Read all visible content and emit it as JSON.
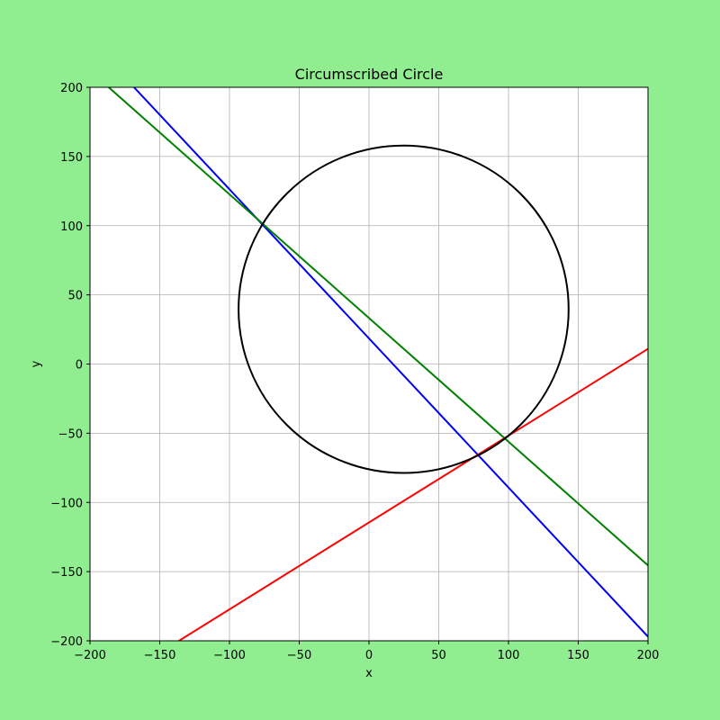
{
  "colors": {
    "figure_background": "#90ee90",
    "plot_background": "#ffffff",
    "grid": "#b0b0b0",
    "axis": "#000000"
  },
  "chart_data": {
    "type": "line",
    "title": "Circumscribed Circle",
    "xlabel": "x",
    "ylabel": "y",
    "xlim": [
      -200,
      200
    ],
    "ylim": [
      -200,
      200
    ],
    "grid": true,
    "x_ticks": [
      -200,
      -150,
      -100,
      -50,
      0,
      50,
      100,
      150,
      200
    ],
    "y_ticks": [
      -200,
      -150,
      -100,
      -50,
      0,
      50,
      100,
      150,
      200
    ],
    "x_tick_labels": [
      "−200",
      "−150",
      "−100",
      "−50",
      "0",
      "50",
      "100",
      "150",
      "200"
    ],
    "y_tick_labels": [
      "−200",
      "−150",
      "−100",
      "−50",
      "0",
      "50",
      "100",
      "150",
      "200"
    ],
    "circle": {
      "center": [
        24.8,
        39.6
      ],
      "radius": 118.3,
      "color": "#000000"
    },
    "series": [
      {
        "color": "#0000ff",
        "x": [
          -200,
          200
        ],
        "y": [
          234.0,
          -197.0
        ]
      },
      {
        "color": "#008000",
        "x": [
          -200,
          200
        ],
        "y": [
          212.0,
          -145.5
        ]
      },
      {
        "color": "#ff0000",
        "x": [
          -200,
          200
        ],
        "y": [
          -240.0,
          11.0
        ]
      }
    ]
  }
}
